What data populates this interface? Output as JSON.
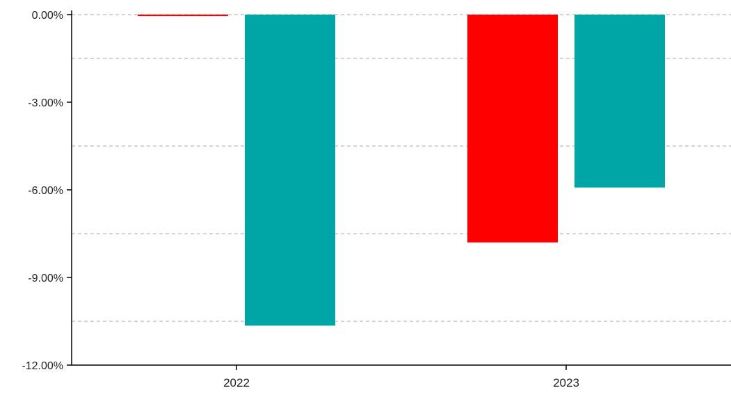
{
  "chart_data": {
    "type": "bar",
    "categories": [
      "2022",
      "2023"
    ],
    "series": [
      {
        "values": [
          -0.05,
          -7.8
        ],
        "color": "#ff0000"
      },
      {
        "values": [
          -10.65,
          -5.92
        ],
        "color": "#00a6a6"
      }
    ],
    "ylim": [
      -12,
      0
    ],
    "yticks": [
      0,
      -3,
      -6,
      -9,
      -12
    ],
    "ytick_labels": [
      "0.00%",
      "-3.00%",
      "-6.00%",
      "-9.00%",
      "-12.00%"
    ],
    "gridlines": [
      0,
      -1.5,
      -4.5,
      -7.5,
      -10.5
    ],
    "grid": true,
    "grid_style": "dashed",
    "legend": "none",
    "axis_color": "#000000",
    "grid_color": "#bbbbbb"
  }
}
